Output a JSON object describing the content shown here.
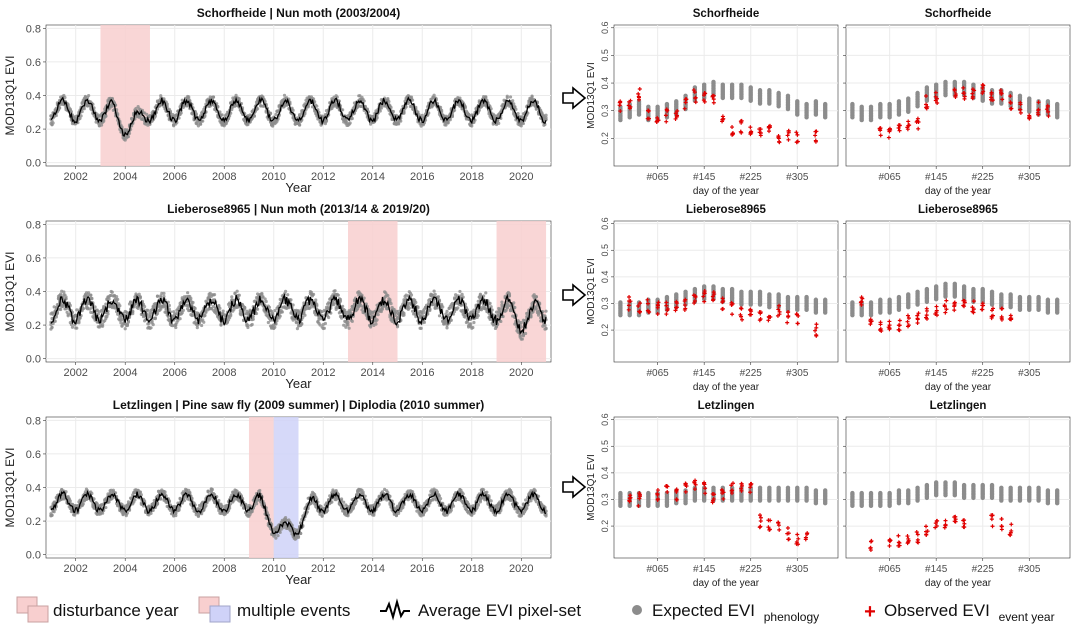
{
  "colors": {
    "grid": "#ebebeb",
    "axis_text": "#4d4d4d",
    "expected": "#8c8c8c",
    "observed": "#e00000",
    "line": "#000000",
    "disturbance_fill": "#f8cfcf",
    "multi_fill": "#cfd2f8"
  },
  "legend": {
    "disturbance": "disturbance year",
    "multiple": "multiple events",
    "average": "Average EVI pixel-set",
    "expected_main": "Expected EVI",
    "expected_sub": "phenology",
    "observed_main": "Observed EVI",
    "observed_sub": "event year"
  },
  "chart_data": [
    {
      "id": "ts-schorfheide",
      "type": "line",
      "title": "Schorfheide | Nun moth (2003/2004)",
      "xlabel": "Year",
      "ylabel": "MOD13Q1 EVI",
      "xlim": [
        2000.8,
        2021.2
      ],
      "ylim": [
        -0.02,
        0.82
      ],
      "xticks": [
        2002,
        2004,
        2006,
        2008,
        2010,
        2012,
        2014,
        2016,
        2018,
        2020
      ],
      "xtick_labels": [
        "2002",
        "2004",
        "2006",
        "2008",
        "2010",
        "2012",
        "2014",
        "2016",
        "2018",
        "2020"
      ],
      "yticks": [
        0,
        0.2,
        0.4,
        0.6,
        0.8
      ],
      "ytick_labels": [
        "0.0",
        "0.2",
        "0.4",
        "0.6",
        "0.8"
      ],
      "series_name": "Average EVI pixel-set",
      "mean": 0.31,
      "amplitude": 0.06,
      "noise": 0.03,
      "seed": 7,
      "shaded": [
        {
          "from": 2003,
          "to": 2005,
          "kind": "disturbance"
        }
      ],
      "dips": [
        {
          "from": 2003.4,
          "to": 2004.9,
          "drop": 0.09
        }
      ]
    },
    {
      "id": "ts-lieberose",
      "type": "line",
      "title": "Lieberose8965 | Nun moth (2013/14 & 2019/20)",
      "xlabel": "Year",
      "ylabel": "MOD13Q1 EVI",
      "xlim": [
        2000.8,
        2021.2
      ],
      "ylim": [
        -0.02,
        0.82
      ],
      "xticks": [
        2002,
        2004,
        2006,
        2008,
        2010,
        2012,
        2014,
        2016,
        2018,
        2020
      ],
      "xtick_labels": [
        "2002",
        "2004",
        "2006",
        "2008",
        "2010",
        "2012",
        "2014",
        "2016",
        "2018",
        "2020"
      ],
      "yticks": [
        0,
        0.2,
        0.4,
        0.6,
        0.8
      ],
      "ytick_labels": [
        "0.0",
        "0.2",
        "0.4",
        "0.6",
        "0.8"
      ],
      "series_name": "Average EVI pixel-set",
      "mean": 0.29,
      "amplitude": 0.06,
      "noise": 0.05,
      "seed": 19,
      "shaded": [
        {
          "from": 2013,
          "to": 2015,
          "kind": "disturbance"
        },
        {
          "from": 2019,
          "to": 2021,
          "kind": "disturbance"
        }
      ],
      "dips": [
        {
          "from": 2019.6,
          "to": 2020.6,
          "drop": 0.07
        }
      ]
    },
    {
      "id": "ts-letzlingen",
      "type": "line",
      "title": "Letzlingen | Pine saw fly (2009 summer) | Diplodia (2010 summer)",
      "xlabel": "Year",
      "ylabel": "MOD13Q1 EVI",
      "xlim": [
        2000.8,
        2021.2
      ],
      "ylim": [
        -0.02,
        0.82
      ],
      "xticks": [
        2002,
        2004,
        2006,
        2008,
        2010,
        2012,
        2014,
        2016,
        2018,
        2020
      ],
      "xtick_labels": [
        "2002",
        "2004",
        "2006",
        "2008",
        "2010",
        "2012",
        "2014",
        "2016",
        "2018",
        "2020"
      ],
      "yticks": [
        0,
        0.2,
        0.4,
        0.6,
        0.8
      ],
      "ytick_labels": [
        "0.0",
        "0.2",
        "0.4",
        "0.6",
        "0.8"
      ],
      "series_name": "Average EVI pixel-set",
      "mean": 0.31,
      "amplitude": 0.05,
      "noise": 0.03,
      "seed": 31,
      "shaded": [
        {
          "from": 2009,
          "to": 2010,
          "kind": "disturbance"
        },
        {
          "from": 2010,
          "to": 2011,
          "kind": "multiple"
        }
      ],
      "dips": [
        {
          "from": 2009.4,
          "to": 2011.6,
          "drop": 0.17
        }
      ]
    },
    {
      "id": "doy-schorfheide-1",
      "type": "scatter",
      "title": "Schorfheide",
      "xlabel": "day of the year",
      "ylabel": "MOD13Q1 EVI",
      "xlim": [
        -10,
        375
      ],
      "ylim": [
        0.1,
        0.61
      ],
      "xticks": [
        65,
        145,
        225,
        305
      ],
      "xtick_labels": [
        "#065",
        "#145",
        "#225",
        "#305"
      ],
      "yticks": [
        0.2,
        0.3,
        0.4,
        0.5,
        0.6
      ],
      "ytick_labels": [
        "0.2",
        "0.3",
        "0.4",
        "0.5",
        "0.6"
      ],
      "show_ylabel": true,
      "doy": [
        1,
        17,
        33,
        49,
        65,
        81,
        97,
        113,
        129,
        145,
        161,
        177,
        193,
        209,
        225,
        241,
        257,
        273,
        289,
        305,
        321,
        337,
        353
      ],
      "expected": [
        0.29,
        0.3,
        0.31,
        0.29,
        0.29,
        0.3,
        0.31,
        0.33,
        0.36,
        0.37,
        0.38,
        0.37,
        0.37,
        0.37,
        0.36,
        0.35,
        0.35,
        0.34,
        0.33,
        0.31,
        0.3,
        0.31,
        0.3
      ],
      "observed": [
        0.31,
        0.33,
        0.36,
        0.29,
        0.28,
        0.28,
        0.29,
        0.32,
        0.35,
        0.35,
        0.35,
        0.27,
        0.23,
        0.24,
        0.23,
        0.22,
        0.24,
        0.21,
        0.21,
        0.2,
        null,
        0.21,
        null
      ],
      "seed": 101
    },
    {
      "id": "doy-schorfheide-2",
      "type": "scatter",
      "title": "Schorfheide",
      "xlabel": "day of the year",
      "ylabel": "MOD13Q1 EVI",
      "xlim": [
        -10,
        375
      ],
      "ylim": [
        0.1,
        0.61
      ],
      "xticks": [
        65,
        145,
        225,
        305
      ],
      "xtick_labels": [
        "#065",
        "#145",
        "#225",
        "#305"
      ],
      "yticks": [
        0.2,
        0.3,
        0.4,
        0.5,
        0.6
      ],
      "ytick_labels": [
        "0.2",
        "0.3",
        "0.4",
        "0.5",
        "0.6"
      ],
      "show_ylabel": false,
      "doy": [
        1,
        17,
        33,
        49,
        65,
        81,
        97,
        113,
        129,
        145,
        161,
        177,
        193,
        209,
        225,
        241,
        257,
        273,
        289,
        305,
        321,
        337,
        353
      ],
      "expected": [
        0.3,
        0.29,
        0.29,
        0.3,
        0.3,
        0.31,
        0.32,
        0.34,
        0.36,
        0.37,
        0.38,
        0.38,
        0.38,
        0.37,
        0.36,
        0.35,
        0.35,
        0.34,
        0.33,
        0.32,
        0.31,
        0.31,
        0.3
      ],
      "observed": [
        null,
        null,
        null,
        0.22,
        0.21,
        0.23,
        0.24,
        0.25,
        0.33,
        0.35,
        null,
        0.36,
        0.36,
        0.36,
        0.37,
        0.36,
        0.35,
        0.33,
        0.31,
        0.29,
        0.31,
        0.3,
        null
      ],
      "seed": 203
    },
    {
      "id": "doy-lieberose-1",
      "type": "scatter",
      "title": "Lieberose8965",
      "xlabel": "day of the year",
      "ylabel": "MOD13Q1 EVI",
      "xlim": [
        -10,
        375
      ],
      "ylim": [
        0.08,
        0.61
      ],
      "xticks": [
        65,
        145,
        225,
        305
      ],
      "xtick_labels": [
        "#065",
        "#145",
        "#225",
        "#305"
      ],
      "yticks": [
        0.2,
        0.3,
        0.4,
        0.5,
        0.6
      ],
      "ytick_labels": [
        "0.2",
        "0.3",
        "0.4",
        "0.5",
        "0.6"
      ],
      "show_ylabel": true,
      "doy": [
        1,
        17,
        33,
        49,
        65,
        81,
        97,
        113,
        129,
        145,
        161,
        177,
        193,
        209,
        225,
        241,
        257,
        273,
        289,
        305,
        321,
        337,
        353
      ],
      "expected": [
        0.28,
        0.28,
        0.28,
        0.29,
        0.29,
        0.3,
        0.31,
        0.32,
        0.33,
        0.34,
        0.34,
        0.33,
        0.33,
        0.32,
        0.32,
        0.32,
        0.31,
        0.31,
        0.3,
        0.3,
        0.3,
        0.29,
        0.29
      ],
      "observed": [
        null,
        0.3,
        0.29,
        0.29,
        0.28,
        0.28,
        0.29,
        0.3,
        0.31,
        0.33,
        0.32,
        0.3,
        0.28,
        0.26,
        0.28,
        0.26,
        0.25,
        0.27,
        0.25,
        0.24,
        null,
        0.2,
        null
      ],
      "seed": 307
    },
    {
      "id": "doy-lieberose-2",
      "type": "scatter",
      "title": "Lieberose8965",
      "xlabel": "day of the year",
      "ylabel": "MOD13Q1 EVI",
      "xlim": [
        -10,
        375
      ],
      "ylim": [
        0.08,
        0.61
      ],
      "xticks": [
        65,
        145,
        225,
        305
      ],
      "xtick_labels": [
        "#065",
        "#145",
        "#225",
        "#305"
      ],
      "yticks": [
        0.2,
        0.3,
        0.4,
        0.5,
        0.6
      ],
      "ytick_labels": [
        "0.2",
        "0.3",
        "0.4",
        "0.5",
        "0.6"
      ],
      "show_ylabel": false,
      "doy": [
        1,
        17,
        33,
        49,
        65,
        81,
        97,
        113,
        129,
        145,
        161,
        177,
        193,
        209,
        225,
        241,
        257,
        273,
        289,
        305,
        321,
        337,
        353
      ],
      "expected": [
        0.28,
        0.28,
        0.28,
        0.29,
        0.29,
        0.3,
        0.31,
        0.32,
        0.33,
        0.34,
        0.35,
        0.35,
        0.34,
        0.33,
        0.33,
        0.32,
        0.31,
        0.31,
        0.3,
        0.3,
        0.3,
        0.29,
        0.29
      ],
      "observed": [
        null,
        0.3,
        0.24,
        0.22,
        0.21,
        0.22,
        0.23,
        0.24,
        0.26,
        0.27,
        0.29,
        0.3,
        0.29,
        0.29,
        0.28,
        0.27,
        0.26,
        0.25,
        null,
        null,
        null,
        null,
        null
      ],
      "seed": 409
    },
    {
      "id": "doy-letzlingen-1",
      "type": "scatter",
      "title": "Letzlingen",
      "xlabel": "day of the year",
      "ylabel": "MOD13Q1 EVI",
      "xlim": [
        -10,
        375
      ],
      "ylim": [
        0.08,
        0.61
      ],
      "xticks": [
        65,
        145,
        225,
        305
      ],
      "xtick_labels": [
        "#065",
        "#145",
        "#225",
        "#305"
      ],
      "yticks": [
        0.2,
        0.3,
        0.4,
        0.5,
        0.6
      ],
      "ytick_labels": [
        "0.2",
        "0.3",
        "0.4",
        "0.5",
        "0.6"
      ],
      "show_ylabel": true,
      "doy": [
        1,
        17,
        33,
        49,
        65,
        81,
        97,
        113,
        129,
        145,
        161,
        177,
        193,
        209,
        225,
        241,
        257,
        273,
        289,
        305,
        321,
        337,
        353
      ],
      "expected": [
        0.3,
        0.3,
        0.3,
        0.3,
        0.3,
        0.3,
        0.31,
        0.31,
        0.32,
        0.32,
        0.32,
        0.32,
        0.32,
        0.32,
        0.32,
        0.32,
        0.32,
        0.32,
        0.32,
        0.32,
        0.32,
        0.31,
        0.31
      ],
      "observed": [
        null,
        0.31,
        0.3,
        null,
        0.32,
        0.33,
        0.32,
        0.34,
        0.35,
        0.34,
        0.31,
        0.32,
        0.34,
        0.35,
        0.34,
        0.22,
        0.2,
        0.19,
        0.17,
        0.15,
        0.15,
        null,
        null
      ],
      "seed": 503
    },
    {
      "id": "doy-letzlingen-2",
      "type": "scatter",
      "title": "Letzlingen",
      "xlabel": "day of the year",
      "ylabel": "MOD13Q1 EVI",
      "xlim": [
        -10,
        375
      ],
      "ylim": [
        0.08,
        0.61
      ],
      "xticks": [
        65,
        145,
        225,
        305
      ],
      "xtick_labels": [
        "#065",
        "#145",
        "#225",
        "#305"
      ],
      "yticks": [
        0.2,
        0.3,
        0.4,
        0.5,
        0.6
      ],
      "ytick_labels": [
        "0.2",
        "0.3",
        "0.4",
        "0.5",
        "0.6"
      ],
      "show_ylabel": false,
      "doy": [
        1,
        17,
        33,
        49,
        65,
        81,
        97,
        113,
        129,
        145,
        161,
        177,
        193,
        209,
        225,
        241,
        257,
        273,
        289,
        305,
        321,
        337,
        353
      ],
      "expected": [
        0.3,
        0.3,
        0.3,
        0.3,
        0.3,
        0.31,
        0.31,
        0.32,
        0.33,
        0.34,
        0.34,
        0.34,
        0.33,
        0.33,
        0.33,
        0.33,
        0.32,
        0.32,
        0.32,
        0.32,
        0.32,
        0.31,
        0.31
      ],
      "observed": [
        null,
        null,
        0.12,
        null,
        0.14,
        0.15,
        0.16,
        0.16,
        0.18,
        0.2,
        0.21,
        0.22,
        0.21,
        null,
        null,
        0.22,
        0.21,
        0.19,
        null,
        null,
        null,
        null,
        null
      ],
      "seed": 607
    }
  ]
}
